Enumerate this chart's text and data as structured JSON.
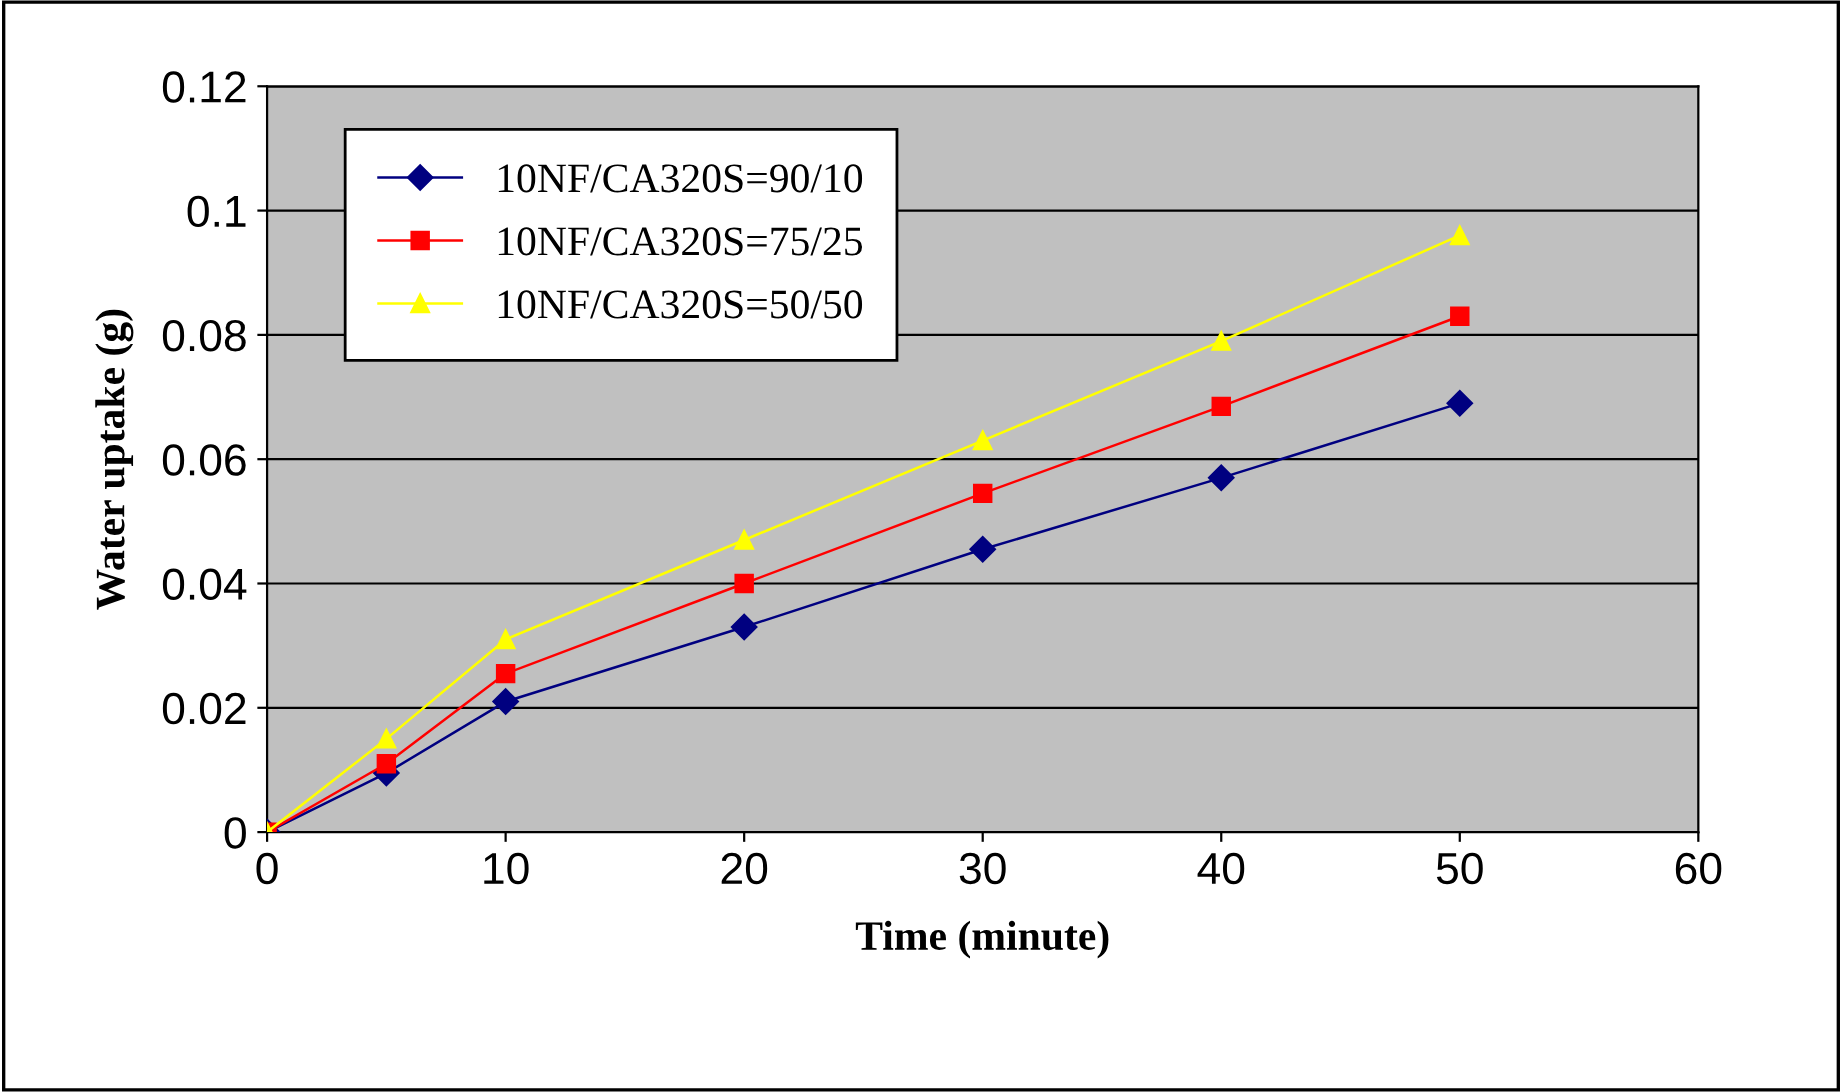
{
  "chart_data": {
    "type": "line",
    "xlabel": "Time (minute)",
    "ylabel": "Water uptake (g)",
    "x": [
      0,
      5,
      10,
      20,
      30,
      40,
      50
    ],
    "series": [
      {
        "name": "10NF/CA320S=90/10",
        "color": "#000080",
        "marker": "diamond",
        "values": [
          0,
          0.0095,
          0.021,
          0.033,
          0.0455,
          0.057,
          0.069
        ]
      },
      {
        "name": "10NF/CA320S=75/25",
        "color": "#ff0000",
        "marker": "square",
        "values": [
          0,
          0.011,
          0.0255,
          0.04,
          0.0545,
          0.0685,
          0.083
        ]
      },
      {
        "name": "10NF/CA320S=50/50",
        "color": "#ffff00",
        "marker": "triangle",
        "values": [
          0,
          0.015,
          0.031,
          0.047,
          0.063,
          0.079,
          0.096
        ]
      }
    ],
    "xlim": [
      0,
      60
    ],
    "ylim": [
      0,
      0.12
    ],
    "xticks": [
      0,
      10,
      20,
      30,
      40,
      50,
      60
    ],
    "yticks": [
      0,
      0.02,
      0.04,
      0.06,
      0.08,
      0.1,
      0.12
    ],
    "grid": "y",
    "legend": "top left",
    "line_style": "solid"
  }
}
